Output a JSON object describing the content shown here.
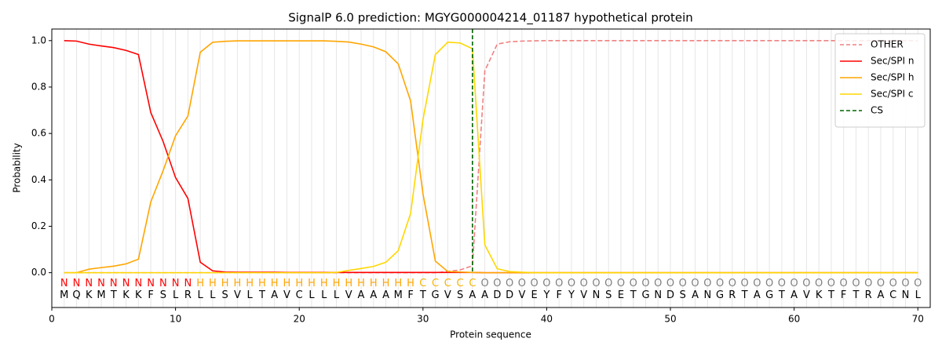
{
  "chart_data": {
    "type": "line",
    "title": "SignalP 6.0 prediction: MGYG000004214_01187 hypothetical protein",
    "xlabel": "Protein sequence",
    "ylabel": "Probability",
    "x": [
      1,
      2,
      3,
      4,
      5,
      6,
      7,
      8,
      9,
      10,
      11,
      12,
      13,
      14,
      15,
      16,
      17,
      18,
      19,
      20,
      21,
      22,
      23,
      24,
      25,
      26,
      27,
      28,
      29,
      30,
      31,
      32,
      33,
      34,
      35,
      36,
      37,
      38,
      39,
      40,
      41,
      42,
      43,
      44,
      45,
      46,
      47,
      48,
      49,
      50,
      51,
      52,
      53,
      54,
      55,
      56,
      57,
      58,
      59,
      60,
      61,
      62,
      63,
      64,
      65,
      66,
      67,
      68,
      69,
      70
    ],
    "sequence": [
      "M",
      "Q",
      "K",
      "M",
      "T",
      "K",
      "K",
      "F",
      "S",
      "L",
      "R",
      "L",
      "L",
      "S",
      "V",
      "L",
      "T",
      "A",
      "V",
      "C",
      "L",
      "L",
      "L",
      "V",
      "A",
      "A",
      "A",
      "M",
      "F",
      "T",
      "G",
      "V",
      "S",
      "A",
      "A",
      "D",
      "D",
      "V",
      "E",
      "Y",
      "F",
      "Y",
      "V",
      "N",
      "S",
      "E",
      "T",
      "G",
      "N",
      "D",
      "S",
      "A",
      "N",
      "G",
      "R",
      "T",
      "A",
      "G",
      "T",
      "A",
      "V",
      "K",
      "T",
      "F",
      "T",
      "R",
      "A",
      "C",
      "N",
      "L"
    ],
    "regions": [
      "N",
      "N",
      "N",
      "N",
      "N",
      "N",
      "N",
      "N",
      "N",
      "N",
      "N",
      "H",
      "H",
      "H",
      "H",
      "H",
      "H",
      "H",
      "H",
      "H",
      "H",
      "H",
      "H",
      "H",
      "H",
      "H",
      "H",
      "H",
      "H",
      "C",
      "C",
      "C",
      "C",
      "C",
      "O",
      "O",
      "O",
      "O",
      "O",
      "O",
      "O",
      "O",
      "O",
      "O",
      "O",
      "O",
      "O",
      "O",
      "O",
      "O",
      "O",
      "O",
      "O",
      "O",
      "O",
      "O",
      "O",
      "O",
      "O",
      "O",
      "O",
      "O",
      "O",
      "O",
      "O",
      "O",
      "O",
      "O",
      "O",
      "O"
    ],
    "region_colors": {
      "N": "#ff0000",
      "H": "#ffa500",
      "C": "#f5b400",
      "O": "#808080"
    },
    "series": [
      {
        "name": "OTHER",
        "color": "#f08080",
        "linestyle": "dashed",
        "values": [
          0,
          0,
          0,
          0,
          0,
          0,
          0,
          0,
          0,
          0,
          0,
          0,
          0,
          0,
          0,
          0,
          0,
          0,
          0,
          0,
          0,
          0,
          0,
          0,
          0,
          0,
          0,
          0,
          0,
          0,
          0,
          0.005,
          0.012,
          0.03,
          0.87,
          0.985,
          0.995,
          0.998,
          0.999,
          1,
          1,
          1,
          1,
          1,
          1,
          1,
          1,
          1,
          1,
          1,
          1,
          1,
          1,
          1,
          1,
          1,
          1,
          1,
          1,
          1,
          1,
          1,
          1,
          1,
          1,
          1,
          1,
          1,
          1,
          1
        ]
      },
      {
        "name": "Sec/SPI n",
        "color": "#ff0000",
        "linestyle": "solid",
        "values": [
          1.0,
          0.998,
          0.985,
          0.977,
          0.97,
          0.958,
          0.94,
          0.69,
          0.565,
          0.41,
          0.32,
          0.045,
          0.008,
          0.003,
          0.002,
          0.002,
          0.002,
          0.002,
          0.001,
          0.001,
          0.001,
          0.001,
          0.001,
          0.001,
          0.001,
          0.001,
          0.001,
          0.001,
          0.001,
          0.001,
          0.001,
          0.001,
          0.001,
          0.001,
          0,
          0,
          0,
          0,
          0,
          0,
          0,
          0,
          0,
          0,
          0,
          0,
          0,
          0,
          0,
          0,
          0,
          0,
          0,
          0,
          0,
          0,
          0,
          0,
          0,
          0,
          0,
          0,
          0,
          0,
          0,
          0,
          0,
          0,
          0,
          0
        ]
      },
      {
        "name": "Sec/SPI h",
        "color": "#ffa500",
        "linestyle": "solid",
        "values": [
          0,
          0,
          0.015,
          0.022,
          0.028,
          0.038,
          0.058,
          0.305,
          0.44,
          0.59,
          0.675,
          0.95,
          0.993,
          0.997,
          0.999,
          0.999,
          0.999,
          0.999,
          0.999,
          0.999,
          0.999,
          0.999,
          0.997,
          0.994,
          0.985,
          0.973,
          0.952,
          0.9,
          0.74,
          0.34,
          0.05,
          0.005,
          0.003,
          0.001,
          0,
          0,
          0,
          0,
          0,
          0,
          0,
          0,
          0,
          0,
          0,
          0,
          0,
          0,
          0,
          0,
          0,
          0,
          0,
          0,
          0,
          0,
          0,
          0,
          0,
          0,
          0,
          0,
          0,
          0,
          0,
          0,
          0,
          0,
          0,
          0
        ]
      },
      {
        "name": "Sec/SPI c",
        "color": "#ffd700",
        "linestyle": "solid",
        "values": [
          0,
          0,
          0,
          0,
          0,
          0,
          0,
          0,
          0,
          0,
          0,
          0,
          0,
          0,
          0,
          0,
          0,
          0,
          0,
          0,
          0,
          0,
          0.001,
          0.01,
          0.018,
          0.027,
          0.045,
          0.095,
          0.255,
          0.66,
          0.94,
          0.993,
          0.99,
          0.965,
          0.12,
          0.017,
          0.005,
          0.002,
          0,
          0,
          0,
          0,
          0,
          0,
          0,
          0,
          0,
          0,
          0,
          0,
          0,
          0,
          0,
          0,
          0,
          0,
          0,
          0,
          0,
          0,
          0,
          0,
          0,
          0,
          0,
          0,
          0,
          0,
          0,
          0
        ]
      }
    ],
    "cs": {
      "name": "CS",
      "x": 34,
      "color": "#006400"
    },
    "xlim": [
      0,
      71
    ],
    "ylim": [
      -0.15,
      1.05
    ],
    "xticks": [
      0,
      10,
      20,
      30,
      40,
      50,
      60,
      70
    ],
    "yticks": [
      {
        "value": 0,
        "label": "0.0"
      },
      {
        "value": 0.2,
        "label": "0.2"
      },
      {
        "value": 0.4,
        "label": "0.4"
      },
      {
        "value": 0.6,
        "label": "0.6"
      },
      {
        "value": 0.8,
        "label": "0.8"
      },
      {
        "value": 1,
        "label": "1.0"
      }
    ],
    "legend": "upper right"
  }
}
